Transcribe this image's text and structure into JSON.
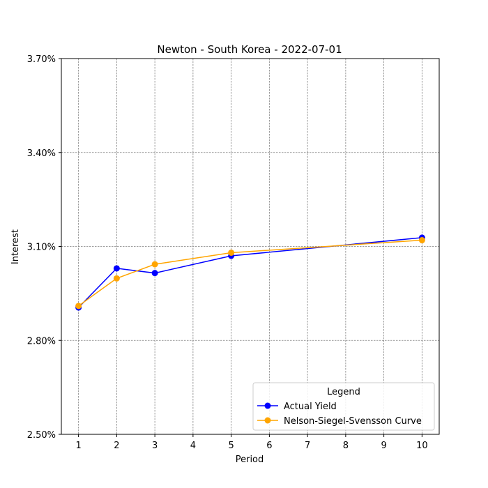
{
  "chart_data": {
    "type": "line",
    "title": "Newton - South Korea - 2022-07-01",
    "xlabel": "Period",
    "ylabel": "Interest",
    "xlim": [
      0.55,
      10.45
    ],
    "ylim": [
      2.5,
      3.7
    ],
    "x_ticks": [
      1,
      2,
      3,
      4,
      5,
      6,
      7,
      8,
      9,
      10
    ],
    "y_ticks": [
      2.5,
      2.8,
      3.1,
      3.4,
      3.7
    ],
    "y_tick_labels": [
      "2.50%",
      "2.80%",
      "3.10%",
      "3.40%",
      "3.70%"
    ],
    "grid": true,
    "legend": {
      "title": "Legend",
      "position": "lower-right"
    },
    "series": [
      {
        "name": "Actual Yield",
        "color": "#0000ff",
        "x": [
          1,
          2,
          3,
          5,
          10
        ],
        "values": [
          2.905,
          3.03,
          3.015,
          3.07,
          3.128
        ]
      },
      {
        "name": "Nelson-Siegel-Svensson Curve",
        "color": "#ffa500",
        "x": [
          1,
          2,
          3,
          5,
          10
        ],
        "values": [
          2.91,
          2.998,
          3.043,
          3.08,
          3.12
        ]
      }
    ]
  }
}
